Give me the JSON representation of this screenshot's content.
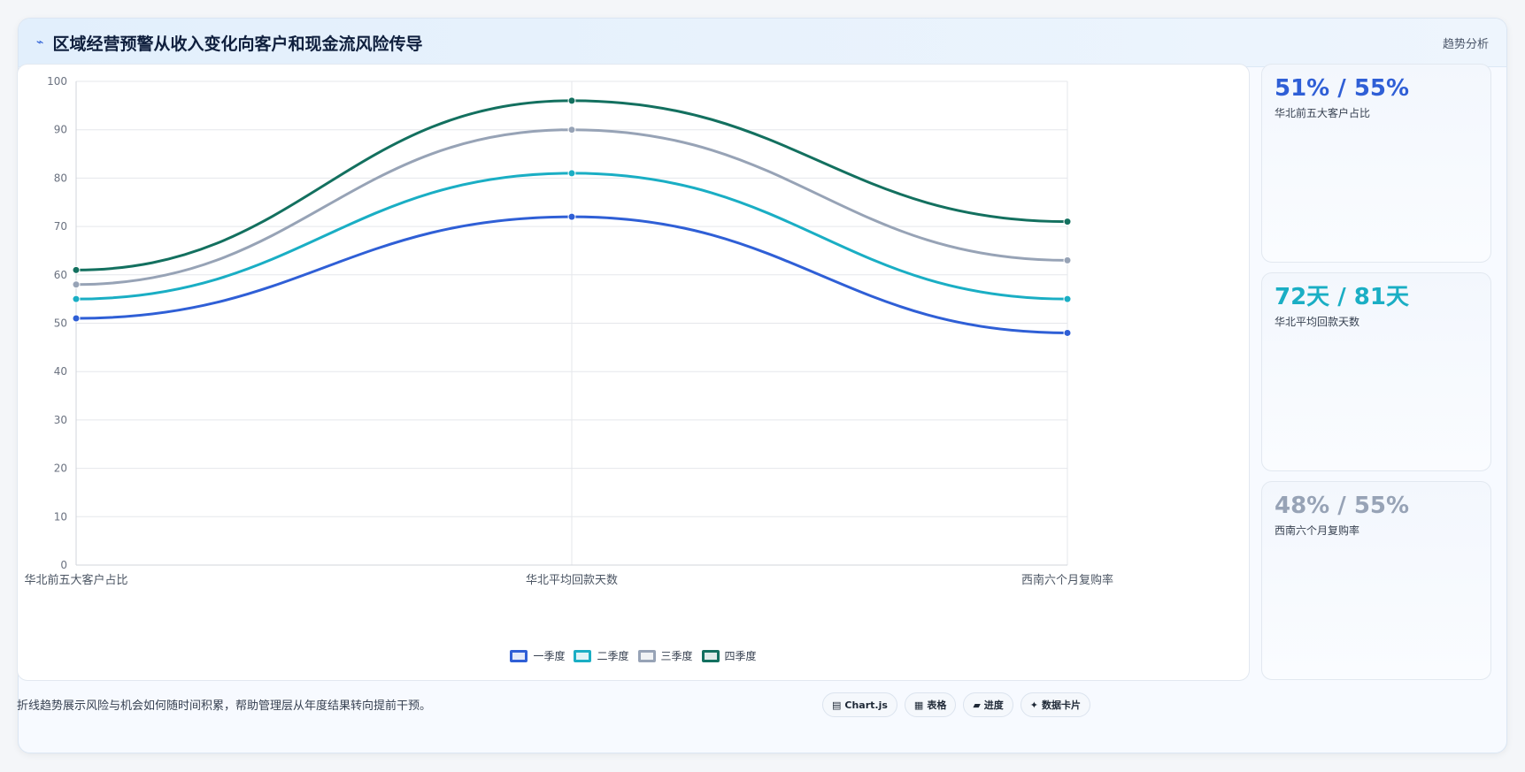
{
  "header": {
    "title": "区域经营预警从收入变化向客户和现金流风险传导",
    "icon": "trend-line-icon",
    "link": "趋势分析"
  },
  "chart_data": {
    "type": "line",
    "categories": [
      "华北前五大客户占比",
      "华北平均回款天数",
      "西南六个月复购率"
    ],
    "series": [
      {
        "name": "一季度",
        "values": [
          51,
          72,
          48
        ],
        "color": "#2f5fd6"
      },
      {
        "name": "二季度",
        "values": [
          55,
          81,
          55
        ],
        "color": "#1aaec4"
      },
      {
        "name": "三季度",
        "values": [
          58,
          90,
          63
        ],
        "color": "#97a3b6"
      },
      {
        "name": "四季度",
        "values": [
          61,
          96,
          71
        ],
        "color": "#13705f"
      }
    ],
    "ylim": [
      0,
      100
    ],
    "yticks": [
      "0",
      "10",
      "20",
      "30",
      "40",
      "50",
      "60",
      "70",
      "80",
      "90",
      "100"
    ],
    "grid": true,
    "legend": "bottom"
  },
  "kpis": [
    {
      "value": "51% / 55%",
      "label": "华北前五大客户占比",
      "color": "#2f5fd6"
    },
    {
      "value": "72天 / 81天",
      "label": "华北平均回款天数",
      "color": "#1aaec4"
    },
    {
      "value": "48% / 55%",
      "label": "西南六个月复购率",
      "color": "#97a3b6"
    }
  ],
  "footer": {
    "text": "折线趋势展示风险与机会如何随时间积累，帮助管理层从年度结果转向提前干预。",
    "chips": [
      {
        "icon": "chart-icon",
        "glyph": "▤",
        "label": "Chart.js"
      },
      {
        "icon": "table-icon",
        "glyph": "▦",
        "label": "表格"
      },
      {
        "icon": "progress-icon",
        "glyph": "▰",
        "label": "进度"
      },
      {
        "icon": "data-card-icon",
        "glyph": "✦",
        "label": "数据卡片"
      }
    ]
  }
}
